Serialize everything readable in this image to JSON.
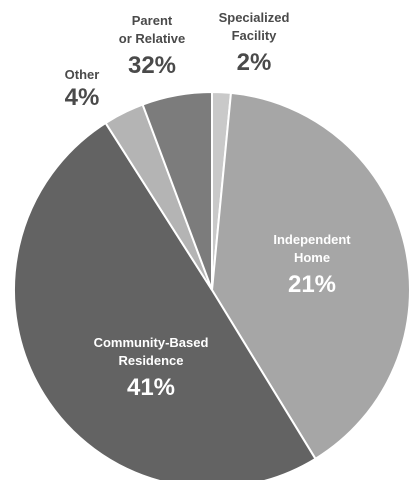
{
  "chart_data": {
    "type": "pie",
    "slices": [
      {
        "label_lines": [
          "Independent",
          "Home"
        ],
        "value": 21,
        "value_label": "21%",
        "color": "#a6a6a6",
        "text_color": "#ffffff"
      },
      {
        "label_lines": [
          "Community-Based",
          "Residence"
        ],
        "value": 41,
        "value_label": "41%",
        "color": "#636363",
        "text_color": "#ffffff"
      },
      {
        "label_lines": [
          "Other"
        ],
        "value": 4,
        "value_label": "4%",
        "color": "#b4b4b4",
        "text_color": "#4a4a4a"
      },
      {
        "label_lines": [
          "Parent",
          "or Relative"
        ],
        "value": 32,
        "value_label": "32%",
        "color": "#7c7c7c",
        "text_color": "#4a4a4a"
      },
      {
        "label_lines": [
          "Specialized",
          "Facility"
        ],
        "value": 2,
        "value_label": "2%",
        "color": "#c9c9c9",
        "text_color": "#4a4a4a"
      }
    ]
  }
}
